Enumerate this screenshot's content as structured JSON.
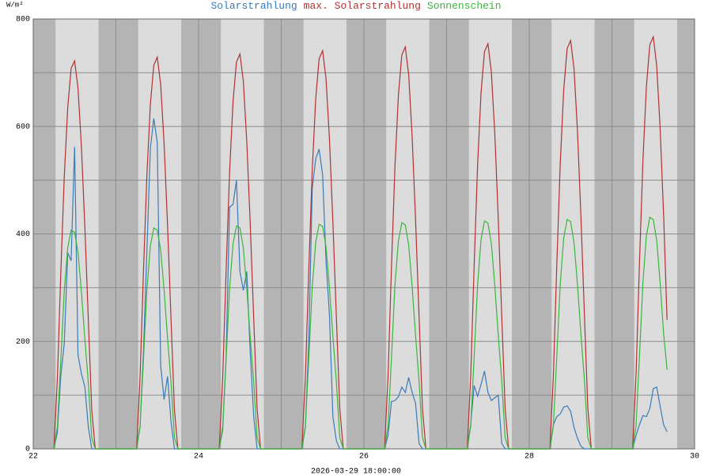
{
  "chart_data": {
    "type": "line",
    "y_unit": "W/m²",
    "x_label": "2026-03-29 18:00:00",
    "xlim": [
      22,
      30
    ],
    "xticks": [
      22,
      24,
      26,
      28,
      30
    ],
    "xgrid": [
      23,
      25,
      27,
      29
    ],
    "ylim": [
      0,
      800
    ],
    "yticks": [
      0,
      200,
      400,
      600,
      800
    ],
    "yminor": [
      100,
      300,
      500,
      700
    ],
    "grid": true,
    "night": [
      [
        22,
        22.27
      ],
      [
        22.79,
        23.27
      ],
      [
        23.79,
        24.27
      ],
      [
        24.79,
        25.27
      ],
      [
        25.79,
        26.27
      ],
      [
        26.79,
        27.27
      ],
      [
        27.79,
        28.27
      ],
      [
        28.79,
        29.27
      ],
      [
        29.79,
        30
      ]
    ],
    "x": [
      22.25,
      22.292,
      22.333,
      22.375,
      22.417,
      22.458,
      22.5,
      22.542,
      22.583,
      22.625,
      22.667,
      22.708,
      22.75,
      23.25,
      23.292,
      23.333,
      23.375,
      23.417,
      23.458,
      23.5,
      23.542,
      23.583,
      23.625,
      23.667,
      23.708,
      23.75,
      24.25,
      24.292,
      24.333,
      24.375,
      24.417,
      24.458,
      24.5,
      24.542,
      24.583,
      24.625,
      24.667,
      24.708,
      24.75,
      25.25,
      25.292,
      25.333,
      25.375,
      25.417,
      25.458,
      25.5,
      25.542,
      25.583,
      25.625,
      25.667,
      25.708,
      25.75,
      26.25,
      26.292,
      26.333,
      26.375,
      26.417,
      26.458,
      26.5,
      26.542,
      26.583,
      26.625,
      26.667,
      26.708,
      26.75,
      27.25,
      27.292,
      27.333,
      27.375,
      27.417,
      27.458,
      27.5,
      27.542,
      27.583,
      27.625,
      27.667,
      27.708,
      27.75,
      28.25,
      28.292,
      28.333,
      28.375,
      28.417,
      28.458,
      28.5,
      28.542,
      28.583,
      28.625,
      28.667,
      28.708,
      28.75,
      29.25,
      29.292,
      29.333,
      29.375,
      29.417,
      29.458,
      29.5,
      29.542,
      29.583,
      29.625,
      29.667
    ],
    "series": [
      {
        "name": "Solarstrahlung",
        "color": "#3a7ab8",
        "values": [
          0,
          30,
          135,
          195,
          365,
          350,
          562,
          175,
          140,
          115,
          40,
          0,
          0,
          0,
          40,
          180,
          370,
          560,
          615,
          570,
          155,
          92,
          135,
          50,
          0,
          0,
          0,
          35,
          170,
          450,
          455,
          500,
          330,
          295,
          330,
          180,
          60,
          0,
          0,
          0,
          40,
          200,
          485,
          540,
          558,
          510,
          350,
          250,
          60,
          15,
          0,
          0,
          0,
          25,
          88,
          90,
          97,
          115,
          105,
          133,
          105,
          85,
          10,
          0,
          0,
          0,
          45,
          118,
          98,
          120,
          145,
          105,
          90,
          95,
          100,
          10,
          0,
          0,
          0,
          45,
          60,
          65,
          78,
          80,
          70,
          40,
          20,
          5,
          0,
          0,
          0,
          0,
          25,
          45,
          62,
          60,
          75,
          112,
          115,
          80,
          45,
          32
        ]
      },
      {
        "name": "max. Solarstrahlung",
        "color": "#b03232",
        "values": [
          0,
          130,
          325,
          505,
          635,
          708,
          722,
          671,
          563,
          412,
          238,
          72,
          0,
          0,
          131,
          328,
          510,
          642,
          714,
          729,
          678,
          569,
          416,
          241,
          73,
          0,
          0,
          132,
          331,
          515,
          647,
          720,
          735,
          684,
          573,
          419,
          243,
          74,
          0,
          0,
          133,
          333,
          519,
          652,
          726,
          741,
          689,
          578,
          422,
          245,
          74,
          0,
          0,
          135,
          337,
          524,
          658,
          733,
          748,
          696,
          583,
          426,
          247,
          75,
          0,
          0,
          136,
          339,
          528,
          664,
          739,
          754,
          701,
          588,
          430,
          249,
          75,
          0,
          0,
          137,
          342,
          532,
          669,
          745,
          760,
          707,
          593,
          433,
          251,
          76,
          0,
          0,
          138,
          345,
          537,
          675,
          752,
          767,
          713,
          598,
          437,
          240
        ]
      },
      {
        "name": "Sonnenschein",
        "color": "#3cb43c",
        "values": [
          0,
          41,
          163,
          293,
          374,
          407,
          403,
          366,
          293,
          204,
          122,
          20,
          0,
          0,
          41,
          164,
          296,
          378,
          411,
          407,
          370,
          296,
          206,
          123,
          21,
          0,
          0,
          42,
          166,
          299,
          382,
          415,
          411,
          374,
          299,
          208,
          125,
          21,
          0,
          0,
          42,
          167,
          301,
          385,
          418,
          414,
          376,
          301,
          209,
          125,
          21,
          0,
          0,
          42,
          168,
          303,
          387,
          421,
          417,
          379,
          303,
          211,
          126,
          21,
          0,
          0,
          42,
          170,
          305,
          390,
          424,
          420,
          382,
          305,
          212,
          127,
          21,
          0,
          0,
          43,
          171,
          307,
          393,
          427,
          423,
          384,
          307,
          214,
          128,
          21,
          0,
          0,
          43,
          172,
          310,
          397,
          431,
          427,
          388,
          310,
          216,
          147
        ]
      }
    ]
  }
}
